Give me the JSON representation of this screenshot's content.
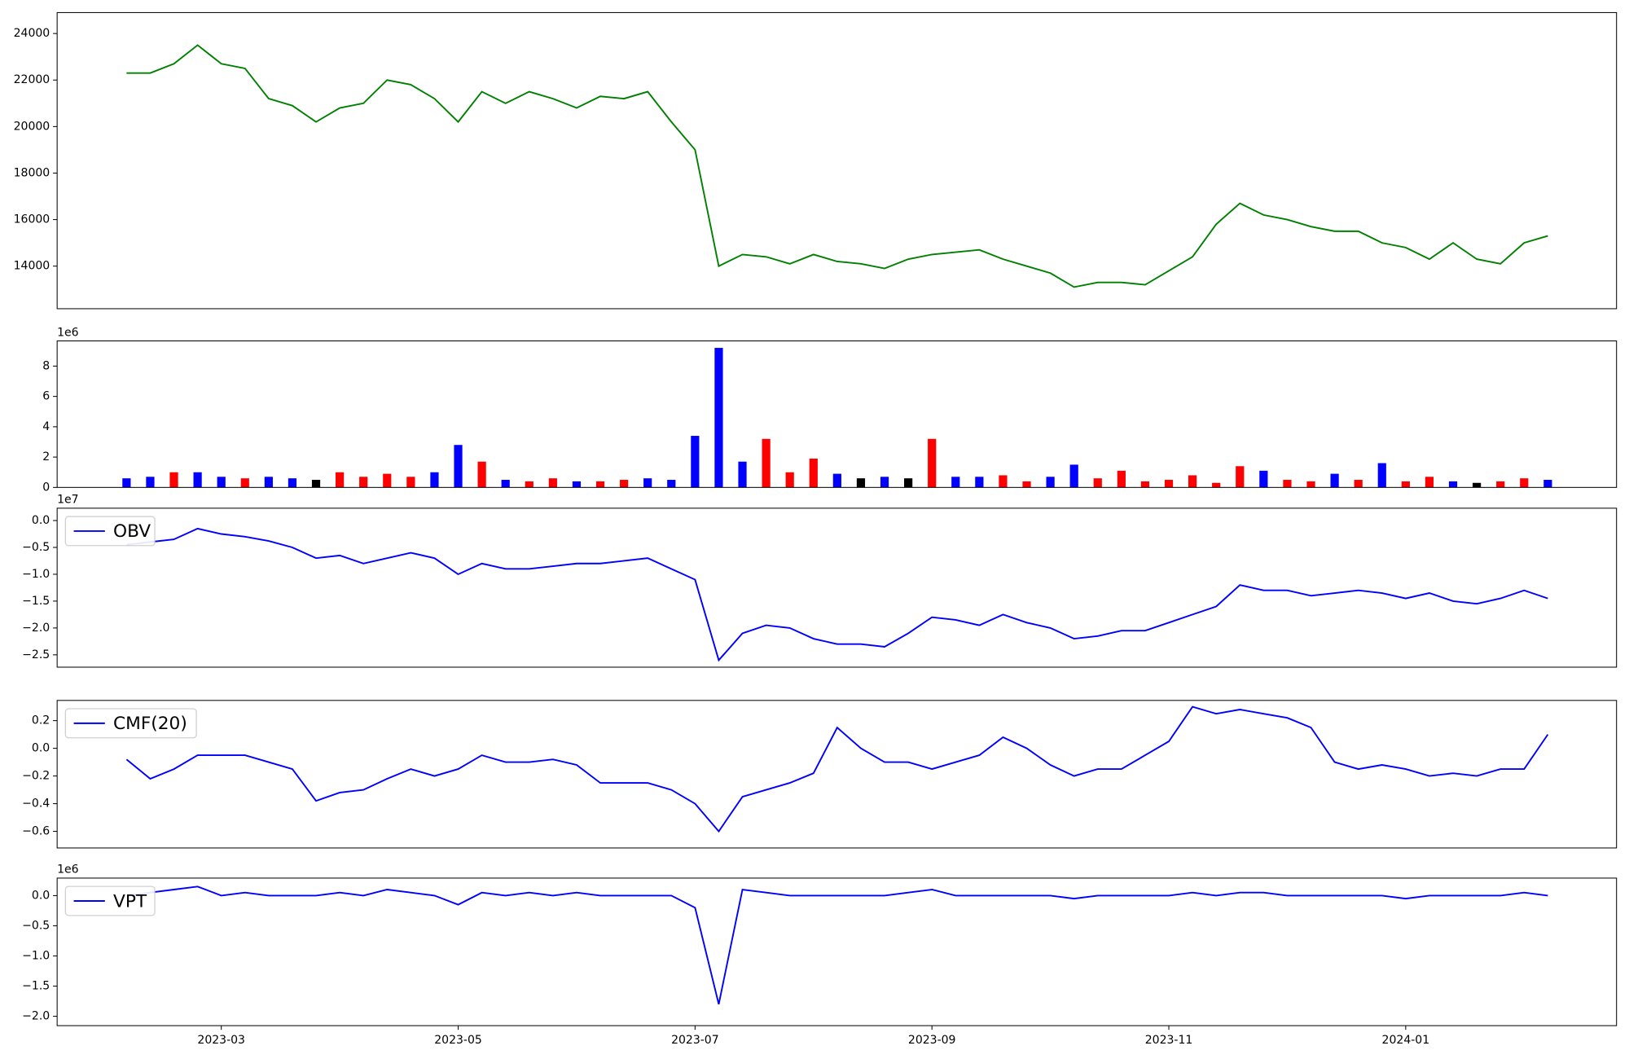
{
  "chart_data": [
    {
      "type": "line",
      "x": [
        1.2,
        1.4,
        1.6,
        1.8,
        2.0,
        2.2,
        2.4,
        2.6,
        2.8,
        3.0,
        3.2,
        3.4,
        3.6,
        3.8,
        4.0,
        4.2,
        4.4,
        4.6,
        4.8,
        5.0,
        5.2,
        5.4,
        5.6,
        5.8,
        6.0,
        6.2,
        6.4,
        6.6,
        6.8,
        7.0,
        7.2,
        7.4,
        7.6,
        7.8,
        8.0,
        8.2,
        8.4,
        8.6,
        8.8,
        9.0,
        9.2,
        9.4,
        9.6,
        9.8,
        10.0,
        10.2,
        10.4,
        10.6,
        10.8,
        11.0,
        11.2,
        11.4,
        11.6,
        11.8,
        12.0,
        12.2,
        12.4,
        12.6,
        12.8,
        13.0,
        13.2
      ],
      "series": [
        {
          "color": "green",
          "values": [
            22300,
            22300,
            22700,
            23500,
            22700,
            22500,
            21200,
            20900,
            20200,
            20800,
            21000,
            22000,
            21800,
            21200,
            20200,
            21500,
            21000,
            21500,
            21200,
            20800,
            21300,
            21200,
            21500,
            20200,
            19000,
            14000,
            14500,
            14400,
            14100,
            14500,
            14200,
            14100,
            13900,
            14300,
            14500,
            14600,
            14700,
            14300,
            14000,
            13700,
            13100,
            13300,
            13300,
            13200,
            13800,
            14400,
            15800,
            16700,
            16200,
            16000,
            15700,
            15500,
            15500,
            15000,
            14800,
            14300,
            15000,
            14300,
            14100,
            15000,
            15300
          ]
        }
      ],
      "xlim": [
        0.614,
        13.78
      ],
      "ylim": [
        12170,
        24900
      ],
      "yticks": [
        14000,
        16000,
        18000,
        20000,
        22000,
        24000
      ]
    },
    {
      "type": "bar",
      "x": [
        1.2,
        1.4,
        1.6,
        1.8,
        2.0,
        2.2,
        2.4,
        2.6,
        2.8,
        3.0,
        3.2,
        3.4,
        3.6,
        3.8,
        4.0,
        4.2,
        4.4,
        4.6,
        4.8,
        5.0,
        5.2,
        5.4,
        5.6,
        5.8,
        6.0,
        6.2,
        6.4,
        6.6,
        6.8,
        7.0,
        7.2,
        7.4,
        7.6,
        7.8,
        8.0,
        8.2,
        8.4,
        8.6,
        8.8,
        9.0,
        9.2,
        9.4,
        9.6,
        9.8,
        10.0,
        10.2,
        10.4,
        10.6,
        10.8,
        11.0,
        11.2,
        11.4,
        11.6,
        11.8,
        12.0,
        12.2,
        12.4,
        12.6,
        12.8,
        13.0,
        13.2
      ],
      "values": [
        600000,
        700000,
        1000000,
        1000000,
        700000,
        600000,
        700000,
        600000,
        500000,
        1000000,
        700000,
        900000,
        700000,
        1000000,
        2800000,
        1700000,
        500000,
        400000,
        600000,
        400000,
        400000,
        500000,
        600000,
        500000,
        3400000,
        9200000,
        1700000,
        3200000,
        1000000,
        1900000,
        900000,
        600000,
        700000,
        600000,
        3200000,
        700000,
        700000,
        800000,
        400000,
        700000,
        1500000,
        600000,
        1100000,
        400000,
        500000,
        800000,
        300000,
        1400000,
        1100000,
        500000,
        400000,
        900000,
        500000,
        1600000,
        400000,
        700000,
        400000,
        300000,
        400000,
        600000,
        500000
      ],
      "colors": [
        "blue",
        "blue",
        "red",
        "blue",
        "blue",
        "red",
        "blue",
        "blue",
        "black",
        "red",
        "red",
        "red",
        "red",
        "blue",
        "blue",
        "red",
        "blue",
        "red",
        "red",
        "blue",
        "red",
        "red",
        "blue",
        "blue",
        "blue",
        "blue",
        "blue",
        "red",
        "red",
        "red",
        "blue",
        "black",
        "blue",
        "black",
        "red",
        "blue",
        "blue",
        "red",
        "red",
        "blue",
        "blue",
        "red",
        "red",
        "red",
        "red",
        "red",
        "red",
        "red",
        "blue",
        "red",
        "red",
        "blue",
        "red",
        "blue",
        "red",
        "red",
        "blue",
        "black",
        "red",
        "red",
        "blue"
      ],
      "xlim": [
        0.614,
        13.78
      ],
      "ylim": [
        0,
        9660000
      ],
      "yticks": [
        0,
        {
          "value": 2000000,
          "label": "2"
        },
        {
          "value": 4000000,
          "label": "4"
        },
        {
          "value": 6000000,
          "label": "6"
        },
        {
          "value": 8000000,
          "label": "8"
        }
      ],
      "offset_label": "1e6"
    },
    {
      "type": "line",
      "x": [
        1.2,
        1.4,
        1.6,
        1.8,
        2.0,
        2.2,
        2.4,
        2.6,
        2.8,
        3.0,
        3.2,
        3.4,
        3.6,
        3.8,
        4.0,
        4.2,
        4.4,
        4.6,
        4.8,
        5.0,
        5.2,
        5.4,
        5.6,
        5.8,
        6.0,
        6.2,
        6.4,
        6.6,
        6.8,
        7.0,
        7.2,
        7.4,
        7.6,
        7.8,
        8.0,
        8.2,
        8.4,
        8.6,
        8.8,
        9.0,
        9.2,
        9.4,
        9.6,
        9.8,
        10.0,
        10.2,
        10.4,
        10.6,
        10.8,
        11.0,
        11.2,
        11.4,
        11.6,
        11.8,
        12.0,
        12.2,
        12.4,
        12.6,
        12.8,
        13.0,
        13.2
      ],
      "series": [
        {
          "name": "OBV",
          "color": "blue",
          "values": [
            -4500000,
            -4000000,
            -3500000,
            -1500000,
            -2500000,
            -3000000,
            -3800000,
            -5000000,
            -7000000,
            -6500000,
            -8000000,
            -7000000,
            -6000000,
            -7000000,
            -10000000,
            -8000000,
            -9000000,
            -9000000,
            -8500000,
            -8000000,
            -8000000,
            -7500000,
            -7000000,
            -9000000,
            -11000000,
            -26000000,
            -21000000,
            -19500000,
            -20000000,
            -22000000,
            -23000000,
            -23000000,
            -23500000,
            -21000000,
            -18000000,
            -18500000,
            -19500000,
            -17500000,
            -19000000,
            -20000000,
            -22000000,
            -21500000,
            -20500000,
            -20500000,
            -19000000,
            -17500000,
            -16000000,
            -12000000,
            -13000000,
            -13000000,
            -14000000,
            -13500000,
            -13000000,
            -13500000,
            -14500000,
            -13500000,
            -15000000,
            -15500000,
            -14500000,
            -13000000,
            -14500000
          ]
        }
      ],
      "xlim": [
        0.614,
        13.78
      ],
      "ylim": [
        -27300000,
        2300000
      ],
      "yticks": [
        {
          "value": -25000000,
          "label": "−2.5"
        },
        {
          "value": -20000000,
          "label": "−2.0"
        },
        {
          "value": -15000000,
          "label": "−1.5"
        },
        {
          "value": -10000000,
          "label": "−1.0"
        },
        {
          "value": -5000000,
          "label": "−0.5"
        },
        {
          "value": 0,
          "label": "0.0"
        }
      ],
      "offset_label": "1e7",
      "legend": "upper left"
    },
    {
      "type": "line",
      "x": [
        1.2,
        1.4,
        1.6,
        1.8,
        2.0,
        2.2,
        2.4,
        2.6,
        2.8,
        3.0,
        3.2,
        3.4,
        3.6,
        3.8,
        4.0,
        4.2,
        4.4,
        4.6,
        4.8,
        5.0,
        5.2,
        5.4,
        5.6,
        5.8,
        6.0,
        6.2,
        6.4,
        6.6,
        6.8,
        7.0,
        7.2,
        7.4,
        7.6,
        7.8,
        8.0,
        8.2,
        8.4,
        8.6,
        8.8,
        9.0,
        9.2,
        9.4,
        9.6,
        9.8,
        10.0,
        10.2,
        10.4,
        10.6,
        10.8,
        11.0,
        11.2,
        11.4,
        11.6,
        11.8,
        12.0,
        12.2,
        12.4,
        12.6,
        12.8,
        13.0,
        13.2
      ],
      "series": [
        {
          "name": "CMF(20)",
          "color": "blue",
          "values": [
            -0.08,
            -0.22,
            -0.15,
            -0.05,
            -0.05,
            -0.05,
            -0.1,
            -0.15,
            -0.38,
            -0.32,
            -0.3,
            -0.22,
            -0.15,
            -0.2,
            -0.15,
            -0.05,
            -0.1,
            -0.1,
            -0.08,
            -0.12,
            -0.25,
            -0.25,
            -0.25,
            -0.3,
            -0.4,
            -0.6,
            -0.35,
            -0.3,
            -0.25,
            -0.18,
            0.15,
            0,
            -0.1,
            -0.1,
            -0.15,
            -0.1,
            -0.05,
            0.08,
            0,
            -0.12,
            -0.2,
            -0.15,
            -0.15,
            -0.05,
            0.05,
            0.3,
            0.25,
            0.28,
            0.25,
            0.22,
            0.15,
            -0.1,
            -0.15,
            -0.12,
            -0.15,
            -0.2,
            -0.18,
            -0.2,
            -0.15,
            -0.15,
            0.1
          ]
        }
      ],
      "xlim": [
        0.614,
        13.78
      ],
      "ylim": [
        -0.72,
        0.346
      ],
      "yticks": [
        {
          "value": -0.6,
          "label": "−0.6"
        },
        {
          "value": -0.4,
          "label": "−0.4"
        },
        {
          "value": -0.2,
          "label": "−0.2"
        },
        {
          "value": 0,
          "label": "0.0"
        },
        0.2
      ],
      "legend": "upper left"
    },
    {
      "type": "line",
      "x": [
        1.2,
        1.4,
        1.6,
        1.8,
        2.0,
        2.2,
        2.4,
        2.6,
        2.8,
        3.0,
        3.2,
        3.4,
        3.6,
        3.8,
        4.0,
        4.2,
        4.4,
        4.6,
        4.8,
        5.0,
        5.2,
        5.4,
        5.6,
        5.8,
        6.0,
        6.2,
        6.4,
        6.6,
        6.8,
        7.0,
        7.2,
        7.4,
        7.6,
        7.8,
        8.0,
        8.2,
        8.4,
        8.6,
        8.8,
        9.0,
        9.2,
        9.4,
        9.6,
        9.8,
        10.0,
        10.2,
        10.4,
        10.6,
        10.8,
        11.0,
        11.2,
        11.4,
        11.6,
        11.8,
        12.0,
        12.2,
        12.4,
        12.6,
        12.8,
        13.0,
        13.2
      ],
      "series": [
        {
          "name": "VPT",
          "color": "blue",
          "values": [
            0,
            50000,
            100000,
            150000,
            0,
            50000,
            0,
            0,
            0,
            50000,
            0,
            100000,
            50000,
            0,
            -150000,
            50000,
            0,
            50000,
            0,
            50000,
            0,
            0,
            0,
            0,
            -200000,
            -1800000,
            100000,
            50000,
            0,
            0,
            0,
            0,
            0,
            50000,
            100000,
            0,
            0,
            0,
            0,
            0,
            -50000,
            0,
            0,
            0,
            0,
            50000,
            0,
            50000,
            50000,
            0,
            0,
            0,
            0,
            0,
            -50000,
            0,
            0,
            0,
            0,
            50000,
            0
          ]
        }
      ],
      "xlim": [
        0.614,
        13.78
      ],
      "ylim": [
        -2155000,
        290000
      ],
      "yticks": [
        {
          "value": -2000000,
          "label": "−2.0"
        },
        {
          "value": -1500000,
          "label": "−1.5"
        },
        {
          "value": -1000000,
          "label": "−1.0"
        },
        {
          "value": -500000,
          "label": "−0.5"
        },
        {
          "value": 0,
          "label": "0.0"
        }
      ],
      "xticks": [
        {
          "value": 2,
          "label": "2023-03"
        },
        {
          "value": 4,
          "label": "2023-05"
        },
        {
          "value": 6,
          "label": "2023-07"
        },
        {
          "value": 8,
          "label": "2023-09"
        },
        {
          "value": 10,
          "label": "2023-11"
        },
        {
          "value": 12,
          "label": "2024-01"
        }
      ],
      "offset_label": "1e6",
      "legend": "upper left"
    }
  ]
}
